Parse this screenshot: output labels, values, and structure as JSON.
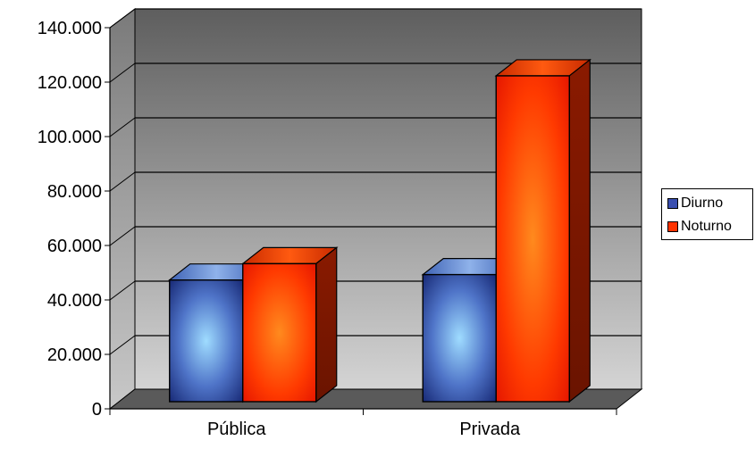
{
  "chart_data": {
    "type": "bar",
    "categories": [
      "Pública",
      "Privada"
    ],
    "series": [
      {
        "name": "Diurno",
        "values": [
          46000,
          48000
        ],
        "color": "#3a4fb0"
      },
      {
        "name": "Noturno",
        "values": [
          52000,
          121000
        ],
        "color": "#ff3300"
      }
    ],
    "ylim": [
      0,
      140000
    ],
    "yticks": [
      0,
      20000,
      40000,
      60000,
      80000,
      100000,
      120000,
      140000
    ],
    "ytick_labels": [
      "0",
      "20.000",
      "40.000",
      "60.000",
      "80.000",
      "100.000",
      "120.000",
      "140.000"
    ],
    "grid": true,
    "legend_position": "right",
    "style": "3d-clustered-column"
  }
}
